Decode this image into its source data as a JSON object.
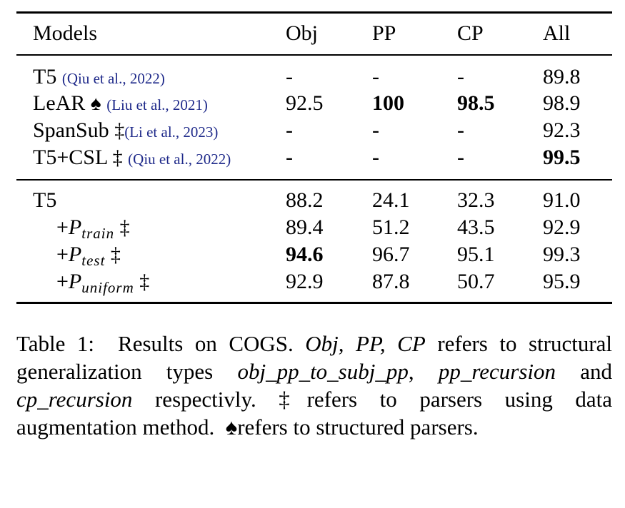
{
  "table": {
    "headers": [
      "Models",
      "Obj",
      "PP",
      "CP",
      "All"
    ],
    "group1": [
      {
        "model": "T5",
        "cite": "(Qiu et al., 2022)",
        "marker": "",
        "obj": "-",
        "pp": "-",
        "cp": "-",
        "all": "89.8"
      },
      {
        "model": "LeAR",
        "cite": "(Liu et al., 2021)",
        "marker": "♠",
        "obj": "92.5",
        "pp": "100",
        "cp": "98.5",
        "all": "98.9"
      },
      {
        "model": "SpanSub",
        "cite": "(Li et al., 2023)",
        "marker": "‡",
        "obj": "-",
        "pp": "-",
        "cp": "-",
        "all": "92.3"
      },
      {
        "model": "T5+CSL",
        "cite": "(Qiu et al., 2022)",
        "marker": "‡",
        "obj": "-",
        "pp": "-",
        "cp": "-",
        "all": "99.5"
      }
    ],
    "group2": [
      {
        "model": "T5",
        "obj": "88.2",
        "pp": "24.1",
        "cp": "32.3",
        "all": "91.0"
      },
      {
        "prefix": "+",
        "var": "P",
        "sub": "train",
        "marker": "‡",
        "obj": "89.4",
        "pp": "51.2",
        "cp": "43.5",
        "all": "92.9"
      },
      {
        "prefix": "+",
        "var": "P",
        "sub": "test",
        "marker": "‡",
        "obj": "94.6",
        "pp": "96.7",
        "cp": "95.1",
        "all": "99.3"
      },
      {
        "prefix": "+",
        "var": "P",
        "sub": "uniform",
        "marker": "‡",
        "obj": "92.9",
        "pp": "87.8",
        "cp": "50.7",
        "all": "95.9"
      }
    ]
  },
  "caption": {
    "label": "Table 1:",
    "t1": "Results on COGS.",
    "t2": "Obj, PP, CP",
    "t3": "refers to structural generalization types",
    "t4": "obj_pp_to_subj_pp",
    "t5": ",",
    "t6": "pp_recursion",
    "t7": "and",
    "t8": "cp_recursion",
    "t9": "respectivly.",
    "t10": "‡refers to parsers using data augmentation method.",
    "t11": "♠refers to structured parsers."
  }
}
